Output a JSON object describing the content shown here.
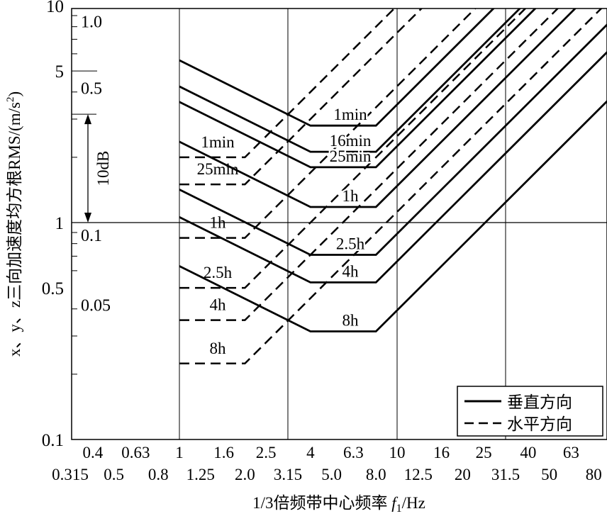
{
  "chart_data": {
    "type": "line",
    "xlabel": "1/3倍频带中心频率 f1/Hz",
    "xlabel_main": "1/3倍频带中心频率 ",
    "xlabel_var": "f",
    "xlabel_sub": "1",
    "xlabel_unit": "/Hz",
    "ylabel": "x、y、z三向加速度均方根RMS/(m/s²)",
    "ylabel_main": "x、y、z三向加速度均方根RMS/(m/s",
    "ylabel_sup": "2",
    "ylabel_end": ")",
    "x_scale": "log",
    "y_scale": "log",
    "xlim": [
      0.315,
      92
    ],
    "ylim": [
      0.1,
      10
    ],
    "y_ticks": [
      {
        "v": 0.1,
        "label": "0.1"
      },
      {
        "v": 0.5,
        "label": "0.5"
      },
      {
        "v": 1,
        "label": "1"
      },
      {
        "v": 5,
        "label": "5"
      },
      {
        "v": 10,
        "label": "10"
      }
    ],
    "y_secondary_labels": [
      {
        "v": 8.5,
        "label": "1.0"
      },
      {
        "v": 4.2,
        "label": "0.5"
      },
      {
        "v": 0.88,
        "label": "0.1"
      },
      {
        "v": 0.42,
        "label": "0.05"
      }
    ],
    "annotation_10db": {
      "label": "10dB",
      "from": 3.16,
      "to": 1
    },
    "x_ticks_row1": [
      {
        "v": 0.4,
        "label": "0.4"
      },
      {
        "v": 0.63,
        "label": "0.63"
      },
      {
        "v": 1,
        "label": "1"
      },
      {
        "v": 1.6,
        "label": "1.6"
      },
      {
        "v": 2.5,
        "label": "2.5"
      },
      {
        "v": 4,
        "label": "4"
      },
      {
        "v": 6.3,
        "label": "6.3"
      },
      {
        "v": 10,
        "label": "10"
      },
      {
        "v": 16,
        "label": "16"
      },
      {
        "v": 25,
        "label": "25"
      },
      {
        "v": 40,
        "label": "40"
      },
      {
        "v": 63,
        "label": "63"
      }
    ],
    "x_ticks_row2": [
      {
        "v": 0.315,
        "label": "0.315"
      },
      {
        "v": 0.5,
        "label": "0.5"
      },
      {
        "v": 0.8,
        "label": "0.8"
      },
      {
        "v": 1.25,
        "label": "1.25"
      },
      {
        "v": 2.0,
        "label": "2.0"
      },
      {
        "v": 3.15,
        "label": "3.15"
      },
      {
        "v": 5.0,
        "label": "5.0"
      },
      {
        "v": 8.0,
        "label": "8.0"
      },
      {
        "v": 12.5,
        "label": "12.5"
      },
      {
        "v": 20,
        "label": "20"
      },
      {
        "v": 31.5,
        "label": "31.5"
      },
      {
        "v": 50,
        "label": "50"
      },
      {
        "v": 80,
        "label": "80"
      }
    ],
    "grid_vertical": [
      1,
      3.15,
      10,
      31.5
    ],
    "grid_horizontal": [
      1
    ],
    "legend": {
      "placement": "bottom-right",
      "entries": [
        {
          "label": "垂直方向",
          "style": "solid"
        },
        {
          "label": "水平方向",
          "style": "dashed"
        }
      ]
    },
    "series": [
      {
        "name": "垂直 1min",
        "label": "1min",
        "style": "solid",
        "flat": 2.8,
        "flat_range": [
          4,
          8
        ]
      },
      {
        "name": "垂直 16min",
        "label": "16min",
        "style": "solid",
        "flat": 2.12,
        "flat_range": [
          4,
          8
        ]
      },
      {
        "name": "垂直 25min",
        "label": "25min",
        "style": "solid",
        "flat": 1.8,
        "flat_range": [
          4,
          8
        ]
      },
      {
        "name": "垂直 1h",
        "label": "1h",
        "style": "solid",
        "flat": 1.18,
        "flat_range": [
          4,
          8
        ]
      },
      {
        "name": "垂直 2.5h",
        "label": "2.5h",
        "style": "solid",
        "flat": 0.71,
        "flat_range": [
          4,
          8
        ]
      },
      {
        "name": "垂直 4h",
        "label": "4h",
        "style": "solid",
        "flat": 0.53,
        "flat_range": [
          4,
          8
        ]
      },
      {
        "name": "垂直 8h",
        "label": "8h",
        "style": "solid",
        "flat": 0.315,
        "flat_range": [
          4,
          8
        ]
      },
      {
        "name": "水平 1min",
        "label": "1min",
        "style": "dashed",
        "flat": 2.0,
        "flat_range": [
          1,
          2
        ]
      },
      {
        "name": "水平 25min",
        "label": "25min",
        "style": "dashed",
        "flat": 1.5,
        "flat_range": [
          1,
          2
        ]
      },
      {
        "name": "水平 1h",
        "label": "1h",
        "style": "dashed",
        "flat": 0.85,
        "flat_range": [
          1,
          2
        ]
      },
      {
        "name": "水平 2.5h",
        "label": "2.5h",
        "style": "dashed",
        "flat": 0.5,
        "flat_range": [
          1,
          2
        ]
      },
      {
        "name": "水平 4h",
        "label": "4h",
        "style": "dashed",
        "flat": 0.355,
        "flat_range": [
          1,
          2
        ]
      },
      {
        "name": "水平 8h",
        "label": "8h",
        "style": "dashed",
        "flat": 0.224,
        "flat_range": [
          1,
          2
        ]
      }
    ]
  }
}
